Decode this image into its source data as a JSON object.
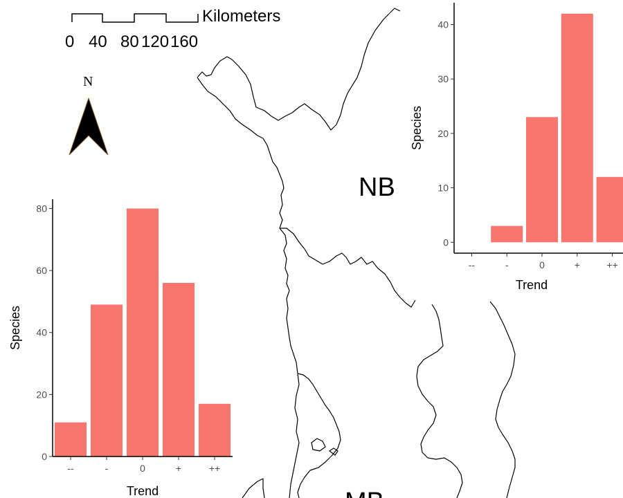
{
  "map": {
    "region_labels": [
      {
        "id": "nb",
        "text": "NB"
      },
      {
        "id": "mb",
        "text": "MB"
      }
    ],
    "scale_bar": {
      "unit": "Kilometers",
      "ticks": [
        "0",
        "40",
        "80",
        "120",
        "160"
      ]
    },
    "north_arrow": {
      "label": "N"
    },
    "colors": {
      "bar_fill": "#F8766D",
      "outline": "#000000"
    }
  },
  "chart_data": [
    {
      "id": "left",
      "type": "bar",
      "categories": [
        "--",
        "-",
        "0",
        "+",
        "++"
      ],
      "values": [
        11,
        49,
        80,
        56,
        17
      ],
      "xlabel": "Trend",
      "ylabel": "Species",
      "ylim": [
        0,
        83
      ],
      "yticks": [
        0,
        20,
        40,
        60,
        80
      ],
      "grid": false
    },
    {
      "id": "right",
      "type": "bar",
      "categories": [
        "--",
        "-",
        "0",
        "+",
        "++"
      ],
      "values": [
        0,
        3,
        23,
        42,
        12
      ],
      "xlabel": "Trend",
      "ylabel": "Species",
      "ylim": [
        -2,
        44
      ],
      "yticks": [
        0,
        10,
        20,
        30,
        40
      ],
      "grid": false
    }
  ]
}
